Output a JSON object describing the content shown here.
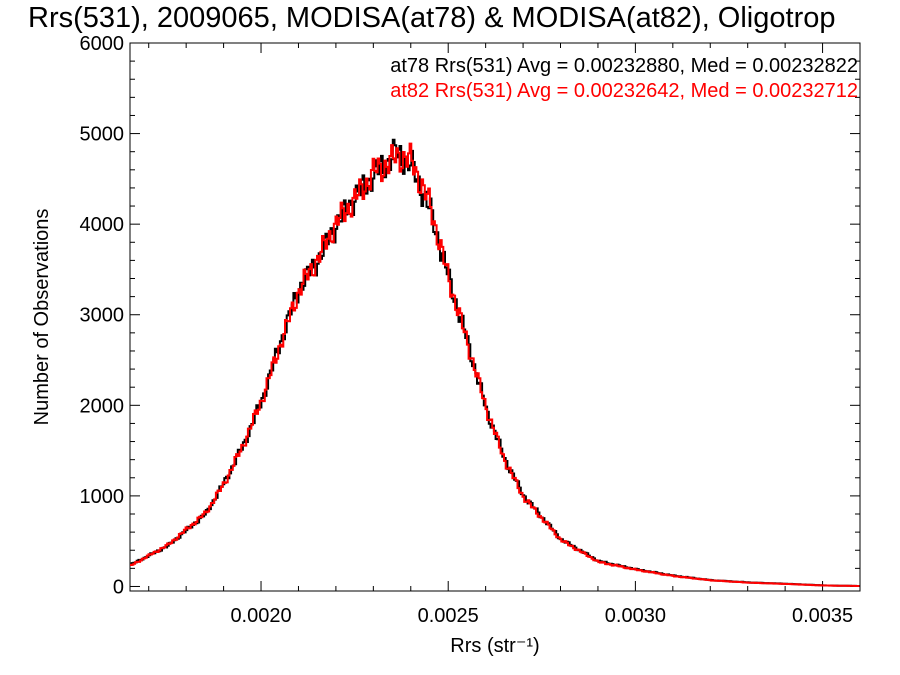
{
  "chart_data": {
    "type": "line",
    "title": "Rrs(531), 2009065, MODISA(at78) & MODISA(at82), Oligotrop",
    "xlabel": "Rrs (str⁻¹)",
    "ylabel": "Number of Observations",
    "xlim": [
      0.00165,
      0.0036
    ],
    "ylim": [
      -50,
      6000
    ],
    "xticks": [
      0.002,
      0.0025,
      0.003,
      0.0035
    ],
    "xtick_labels": [
      "0.0020",
      "0.0025",
      "0.0030",
      "0.0035"
    ],
    "yticks": [
      0,
      1000,
      2000,
      3000,
      4000,
      5000,
      6000
    ],
    "ytick_labels": [
      "0",
      "1000",
      "2000",
      "3000",
      "4000",
      "5000",
      "6000"
    ],
    "grid": false,
    "legend_position": "top-right",
    "series": [
      {
        "name": "at78 Rrs(531) Avg = 0.00232880, Med = 0.00232822",
        "color": "#000000",
        "x": [
          0.00165,
          0.00175,
          0.00185,
          0.0019,
          0.00195,
          0.002,
          0.00205,
          0.0021,
          0.00215,
          0.0022,
          0.00225,
          0.0023,
          0.00235,
          0.00236,
          0.0024,
          0.00245,
          0.0025,
          0.00255,
          0.0026,
          0.00265,
          0.0027,
          0.0028,
          0.0029,
          0.003,
          0.0031,
          0.0032,
          0.0033,
          0.0034,
          0.0035,
          0.0036
        ],
        "y": [
          240,
          450,
          800,
          1150,
          1550,
          2050,
          2700,
          3300,
          3600,
          4000,
          4300,
          4550,
          4750,
          4800,
          4650,
          4150,
          3400,
          2700,
          1950,
          1400,
          1000,
          520,
          280,
          190,
          120,
          70,
          45,
          30,
          12,
          5
        ]
      },
      {
        "name": "at82 Rrs(531) Avg = 0.00232642, Med = 0.00232712",
        "color": "#ff0000",
        "x": [
          0.00165,
          0.00175,
          0.00185,
          0.0019,
          0.00195,
          0.002,
          0.00205,
          0.0021,
          0.00215,
          0.0022,
          0.00225,
          0.0023,
          0.00235,
          0.00236,
          0.0024,
          0.00245,
          0.0025,
          0.00255,
          0.0026,
          0.00265,
          0.0027,
          0.0028,
          0.0029,
          0.003,
          0.0031,
          0.0032,
          0.0033,
          0.0034,
          0.0035,
          0.0036
        ],
        "y": [
          230,
          460,
          810,
          1140,
          1560,
          2060,
          2680,
          3280,
          3620,
          4020,
          4280,
          4580,
          4700,
          4760,
          4700,
          4200,
          3380,
          2680,
          1960,
          1380,
          980,
          510,
          270,
          185,
          115,
          68,
          42,
          28,
          11,
          5
        ]
      }
    ]
  }
}
